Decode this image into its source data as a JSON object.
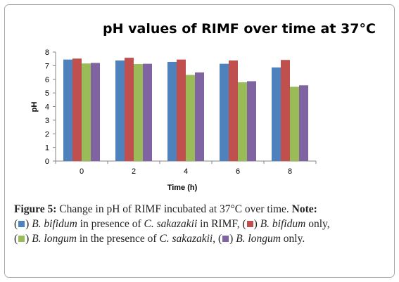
{
  "chart_data": {
    "type": "bar",
    "title": "pH values of RIMF over time at 37°C",
    "xlabel": "Time (h)",
    "ylabel": "pH",
    "ylim": [
      0,
      8
    ],
    "yticks": [
      "0",
      "1",
      "2",
      "3",
      "4",
      "5",
      "6",
      "7",
      "8"
    ],
    "categories": [
      "0",
      "2",
      "4",
      "6",
      "8"
    ],
    "grid": false,
    "legend": "none",
    "series": [
      {
        "values": [
          7.45,
          7.38,
          7.28,
          7.14,
          6.87
        ],
        "color": "#4f81bd"
      },
      {
        "values": [
          7.52,
          7.58,
          7.45,
          7.38,
          7.42
        ],
        "color": "#c0504d"
      },
      {
        "values": [
          7.16,
          7.12,
          6.32,
          5.78,
          5.45
        ],
        "color": "#9bbb59"
      },
      {
        "values": [
          7.2,
          7.14,
          6.5,
          5.86,
          5.56
        ],
        "color": "#8064a2"
      }
    ]
  },
  "caption": {
    "figure_label": "Figure 5:",
    "text1": " Change in pH of RIMF incubated at 37°C over time. ",
    "note_label": "Note:",
    "s1_open": "(",
    "s1_close": ") ",
    "s1_species": "B. bifidum",
    "s1_mid": " in presence of ",
    "s1_pathogen": "C. sakazakii",
    "s1_end": " in RIMF, ",
    "s2_open": "(",
    "s2_close": ") ",
    "s2_species": "B. bifidum",
    "s2_end": " only,",
    "s3_open": "(",
    "s3_close": ") ",
    "s3_species": "B. longum",
    "s3_mid": " in the presence of ",
    "s3_pathogen": "C. sakazakii",
    "s3_end": ", ",
    "s4_open": "(",
    "s4_close": ") ",
    "s4_species": "B. longum",
    "s4_end": " only."
  }
}
